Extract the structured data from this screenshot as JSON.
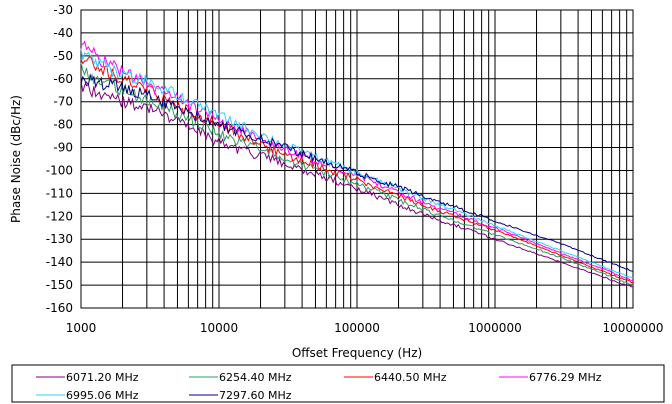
{
  "chart_data": {
    "type": "line",
    "xlabel": "Offset Frequency (Hz)",
    "ylabel": "Phase Noise (dBc/Hz)",
    "x_scale": "log",
    "xlim": [
      1000,
      10000000
    ],
    "ylim": [
      -160,
      -30
    ],
    "x_ticks": [
      "1000",
      "10000",
      "100000",
      "1000000",
      "10000000"
    ],
    "y_ticks": [
      "-30",
      "-40",
      "-50",
      "-60",
      "-70",
      "-80",
      "-90",
      "-100",
      "-110",
      "-120",
      "-130",
      "-140",
      "-150",
      "-160"
    ],
    "grid": true,
    "legend_position": "bottom",
    "x": [
      1000,
      1500,
      2000,
      3000,
      5000,
      10000,
      30000,
      100000,
      300000,
      1000000,
      3000000,
      10000000
    ],
    "series": [
      {
        "name": "6071.20 MHz",
        "color": "#800080",
        "values": [
          -62,
          -68,
          -70,
          -72,
          -78,
          -88,
          -97,
          -108,
          -119,
          -130,
          -140,
          -151
        ]
      },
      {
        "name": "6254.40 MHz",
        "color": "#339966",
        "values": [
          -56,
          -62,
          -65,
          -69,
          -75,
          -84,
          -95,
          -106,
          -117,
          -128,
          -138,
          -150
        ]
      },
      {
        "name": "6440.50 MHz",
        "color": "#ff0000",
        "values": [
          -50,
          -57,
          -60,
          -65,
          -72,
          -80,
          -93,
          -104,
          -115,
          -126,
          -137,
          -149
        ]
      },
      {
        "name": "6776.29 MHz",
        "color": "#ff00ff",
        "values": [
          -45,
          -53,
          -57,
          -62,
          -69,
          -78,
          -91,
          -102,
          -114,
          -125,
          -136,
          -148
        ]
      },
      {
        "name": "6995.06 MHz",
        "color": "#33ccff",
        "values": [
          -49,
          -55,
          -59,
          -61,
          -67,
          -76,
          -89,
          -101,
          -112,
          -124,
          -135,
          -147
        ]
      },
      {
        "name": "7297.60 MHz",
        "color": "#000080",
        "values": [
          -60,
          -62,
          -64,
          -67,
          -73,
          -80,
          -90,
          -101,
          -111,
          -122,
          -132,
          -144
        ]
      }
    ]
  }
}
